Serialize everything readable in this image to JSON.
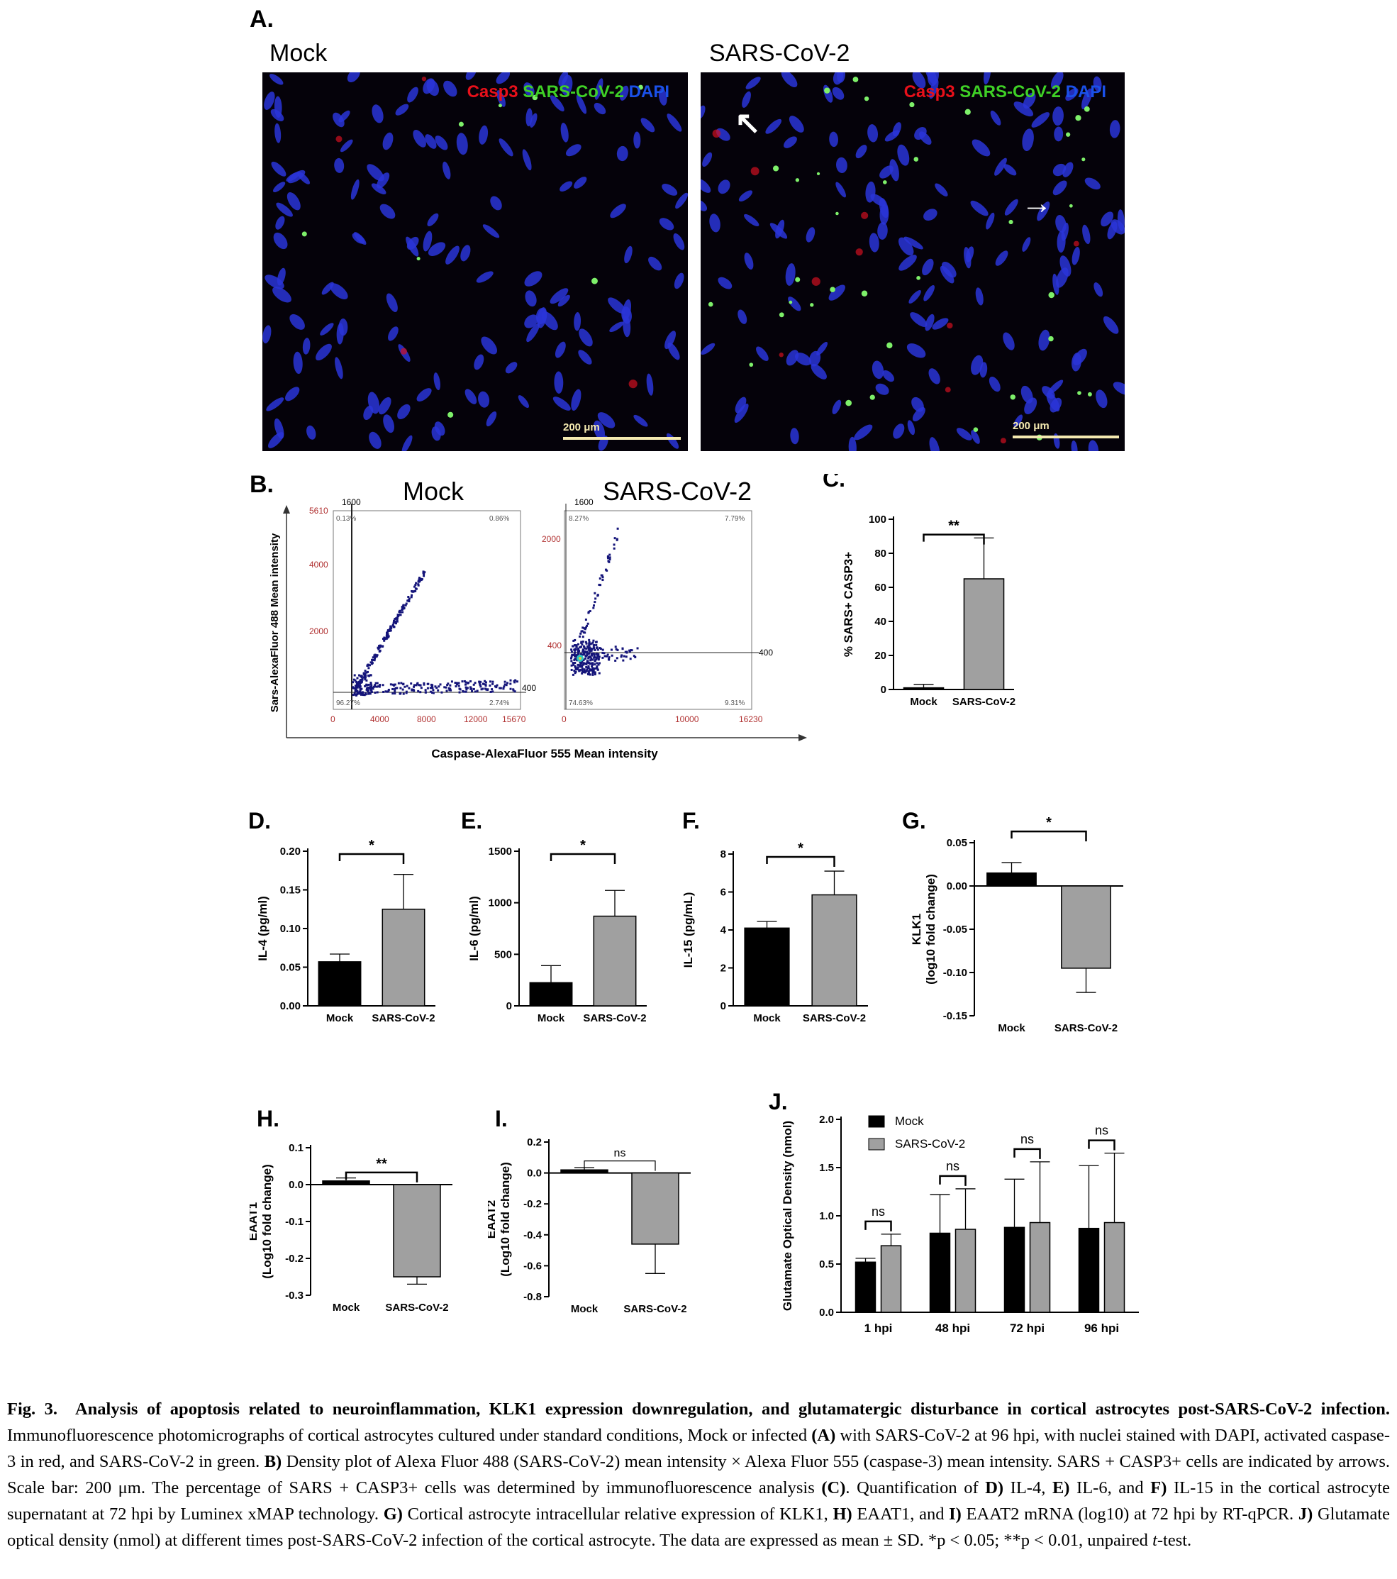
{
  "panelA": {
    "label": "A.",
    "left_title": "Mock",
    "right_title": "SARS-CoV-2",
    "legend": {
      "casp3": "Casp3",
      "sars": "SARS-CoV-2",
      "dapi": "DAPI"
    },
    "scale_text": "200 μm",
    "colors": {
      "casp3": "#e8101a",
      "sars": "#3fd026",
      "dapi": "#1a50e8"
    }
  },
  "panelB": {
    "label": "B.",
    "left_title": "Mock",
    "right_title": "SARS-CoV-2",
    "xlabel": "Caspase-AlexaFluor 555 Mean intensity",
    "ylabel": "Sars-AlexaFluor 488 Mean intensity",
    "mock": {
      "y_ticks": [
        "5610",
        "4000",
        "2000",
        "0"
      ],
      "x_ticks": [
        "0",
        "4000",
        "8000",
        "12000",
        "15670"
      ],
      "gate_x": "1600",
      "gate_y": "400",
      "quadrants": {
        "ul": "0.13%",
        "ur": "0.86%",
        "ll": "96.27%",
        "lr": "2.74%"
      }
    },
    "sars": {
      "y_ticks": [
        "2000",
        "400",
        "0"
      ],
      "x_ticks": [
        "0",
        "10000",
        "16230"
      ],
      "gate_x": "1600",
      "gate_y": "400",
      "quadrants": {
        "ul": "8.27%",
        "ur": "7.79%",
        "ll": "74.63%",
        "lr": "9.31%"
      }
    }
  },
  "captionText": {
    "fig": "Fig. 3.",
    "title": "Analysis of apoptosis related to neuroinflammation, KLK1 expression downregulation, and glutamatergic disturbance in cortical astrocytes post-SARS-CoV-2 infection.",
    "s1": "Immunofluorescence photomicrographs of cortical astrocytes cultured under standard conditions, Mock or infected",
    "A": "(A)",
    "s2": "with SARS-CoV-2 at 96 hpi, with nuclei stained with DAPI, activated caspase-3 in red, and SARS-CoV-2 in green.",
    "B": "B)",
    "s3": "Density plot of Alexa Fluor 488 (SARS-CoV-2) mean intensity × Alexa Fluor 555 (caspase-3) mean intensity. SARS + CASP3+ cells are indicated by arrows. Scale bar: 200 μm. The percentage of SARS + CASP3+ cells was determined by immunofluorescence analysis",
    "C": "(C)",
    "s4": ". Quantification of",
    "D": "D)",
    "s5": "IL-4,",
    "E": "E)",
    "s6": "IL-6, and",
    "F": "F)",
    "s7": "IL-15 in the cortical astrocyte supernatant at 72 hpi by Luminex xMAP technology.",
    "G": "G)",
    "s8": "Cortical astrocyte intracellular relative expression of KLK1,",
    "H": "H)",
    "s9": "EAAT1, and",
    "I": "I)",
    "s10": "EAAT2 mRNA (log10) at 72 hpi by RT-qPCR.",
    "J": "J)",
    "s11": "Glutamate optical density (nmol) at different times post-SARS-CoV-2 infection of the cortical astrocyte. The data are expressed as mean ± SD. *p < 0.05; **p < 0.01, unpaired",
    "t": "t",
    "s12": "-test."
  },
  "chart_data": [
    {
      "panel": "C.",
      "type": "bar",
      "categories": [
        "Mock",
        "SARS-CoV-2"
      ],
      "values": [
        1,
        65
      ],
      "errors": [
        2,
        24
      ],
      "ylabel": "% SARS+ CASP3+",
      "ylim": [
        0,
        100
      ],
      "yticks": [
        0,
        20,
        40,
        60,
        80,
        100
      ],
      "tick_labels": [
        "0",
        "20",
        "40",
        "60",
        "80",
        "100"
      ],
      "significance": "**"
    },
    {
      "panel": "D.",
      "type": "bar",
      "categories": [
        "Mock",
        "SARS-CoV-2"
      ],
      "values": [
        0.057,
        0.125
      ],
      "errors": [
        0.01,
        0.045
      ],
      "ylabel": "IL-4 (pg/ml)",
      "ylim": [
        0,
        0.2
      ],
      "yticks": [
        0,
        0.05,
        0.1,
        0.15,
        0.2
      ],
      "tick_labels": [
        "0.00",
        "0.05",
        "0.10",
        "0.15",
        "0.20"
      ],
      "significance": "*"
    },
    {
      "panel": "E.",
      "type": "bar",
      "categories": [
        "Mock",
        "SARS-CoV-2"
      ],
      "values": [
        225,
        870
      ],
      "errors": [
        165,
        250
      ],
      "ylabel": "IL-6 (pg/ml)",
      "ylim": [
        0,
        1500
      ],
      "yticks": [
        0,
        500,
        1000,
        1500
      ],
      "tick_labels": [
        "0",
        "500",
        "1000",
        "1500"
      ],
      "significance": "*"
    },
    {
      "panel": "F.",
      "type": "bar",
      "categories": [
        "Mock",
        "SARS-CoV-2"
      ],
      "values": [
        4.1,
        5.85
      ],
      "errors": [
        0.35,
        1.25
      ],
      "ylabel": "IL-15 (pg/mL)",
      "ylim": [
        0,
        8
      ],
      "yticks": [
        0,
        2,
        4,
        6,
        8
      ],
      "tick_labels": [
        "0",
        "2",
        "4",
        "6",
        "8"
      ],
      "significance": "*"
    },
    {
      "panel": "G.",
      "type": "bar",
      "categories": [
        "Mock",
        "SARS-CoV-2"
      ],
      "values": [
        0.015,
        -0.095
      ],
      "errors": [
        0.012,
        0.028
      ],
      "ylabel": "KLK1",
      "ylabel2": "(log10 fold change)",
      "ylim": [
        -0.15,
        0.05
      ],
      "yticks": [
        -0.15,
        -0.1,
        -0.05,
        0,
        0.05
      ],
      "tick_labels": [
        "-0.15",
        "-0.10",
        "-0.05",
        "0.00",
        "0.05"
      ],
      "significance": "*"
    },
    {
      "panel": "H.",
      "type": "bar",
      "categories": [
        "Mock",
        "SARS-CoV-2"
      ],
      "values": [
        0.01,
        -0.25
      ],
      "errors": [
        0.008,
        0.02
      ],
      "ylabel": "EAAT1",
      "ylabel2": "(Log10 fold change)",
      "ylim": [
        -0.3,
        0.1
      ],
      "yticks": [
        -0.3,
        -0.2,
        -0.1,
        0,
        0.1
      ],
      "tick_labels": [
        "-0.3",
        "-0.2",
        "-0.1",
        "0.0",
        "0.1"
      ],
      "significance": "**"
    },
    {
      "panel": "I.",
      "type": "bar",
      "categories": [
        "Mock",
        "SARS-CoV-2"
      ],
      "values": [
        0.02,
        -0.46
      ],
      "errors": [
        0.015,
        0.19
      ],
      "ylabel": "EAAT2",
      "ylabel2": "(Log10 fold change)",
      "ylim": [
        -0.8,
        0.2
      ],
      "yticks": [
        -0.8,
        -0.6,
        -0.4,
        -0.2,
        0,
        0.2
      ],
      "tick_labels": [
        "-0.8",
        "-0.6",
        "-0.4",
        "-0.2",
        "0.0",
        "0.2"
      ],
      "significance": "ns"
    },
    {
      "panel": "J.",
      "type": "bar",
      "categories": [
        "1 hpi",
        "48 hpi",
        "72 hpi",
        "96 hpi"
      ],
      "series": [
        {
          "name": "Mock",
          "values": [
            0.52,
            0.82,
            0.88,
            0.87
          ],
          "errors": [
            0.04,
            0.4,
            0.5,
            0.65
          ]
        },
        {
          "name": "SARS-CoV-2",
          "values": [
            0.69,
            0.86,
            0.93,
            0.93
          ],
          "errors": [
            0.12,
            0.42,
            0.63,
            0.72
          ]
        }
      ],
      "ylabel": "Glutamate Optical Density (nmol)",
      "ylim": [
        0,
        2.0
      ],
      "yticks": [
        0,
        0.5,
        1,
        1.5,
        2
      ],
      "tick_labels": [
        "0.0",
        "0.5",
        "1.0",
        "1.5",
        "2.0"
      ],
      "significance": [
        "ns",
        "ns",
        "ns",
        "ns"
      ],
      "legend_position": "top-left"
    }
  ]
}
